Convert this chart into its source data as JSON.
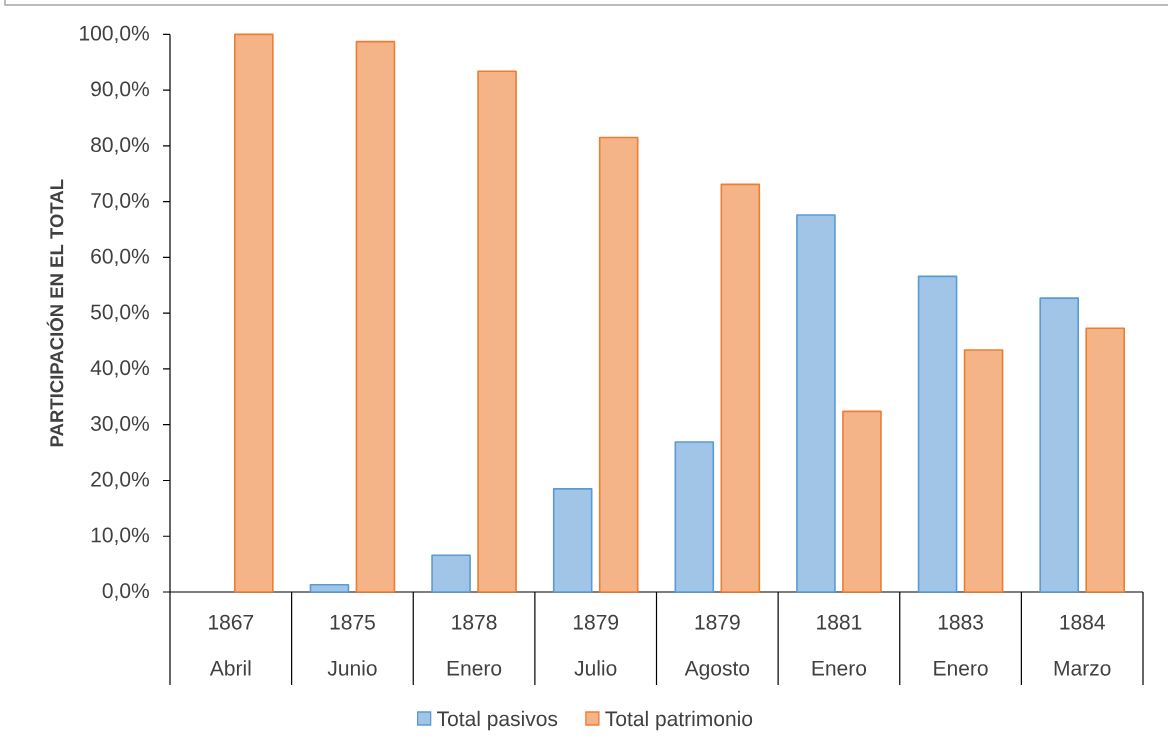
{
  "chart_data": {
    "type": "bar",
    "ylabel": "PARTICIPACIÓN EN EL TOTAL",
    "categories": [
      "1867 Abril",
      "1875 Junio",
      "1878 Enero",
      "1879 Julio",
      "1879 Agosto",
      "1881 Enero",
      "1883 Enero",
      "1884 Marzo"
    ],
    "series": [
      {
        "name": "Total pasivos",
        "color": "#5b9bd5",
        "values": [
          null,
          1.3,
          6.6,
          18.5,
          26.9,
          67.6,
          56.6,
          52.7
        ]
      },
      {
        "name": "Total patrimonio",
        "color": "#ed7d31",
        "values": [
          100,
          98.7,
          93.4,
          81.5,
          73.1,
          32.4,
          43.4,
          47.3
        ]
      }
    ],
    "ylim": [
      0,
      100
    ],
    "yticks": [
      {
        "value": 0,
        "label": "0,0%"
      },
      {
        "value": 10,
        "label": "10,0%"
      },
      {
        "value": 20,
        "label": "20,0%"
      },
      {
        "value": 30,
        "label": "30,0%"
      },
      {
        "value": 40,
        "label": "40,0%"
      },
      {
        "value": 50,
        "label": "50,0%"
      },
      {
        "value": 60,
        "label": "60,0%"
      },
      {
        "value": 70,
        "label": "70,0%"
      },
      {
        "value": 80,
        "label": "80,0%"
      },
      {
        "value": 90,
        "label": "90,0%"
      },
      {
        "value": 100,
        "label": "100,0%"
      }
    ],
    "legend": "bottom"
  }
}
